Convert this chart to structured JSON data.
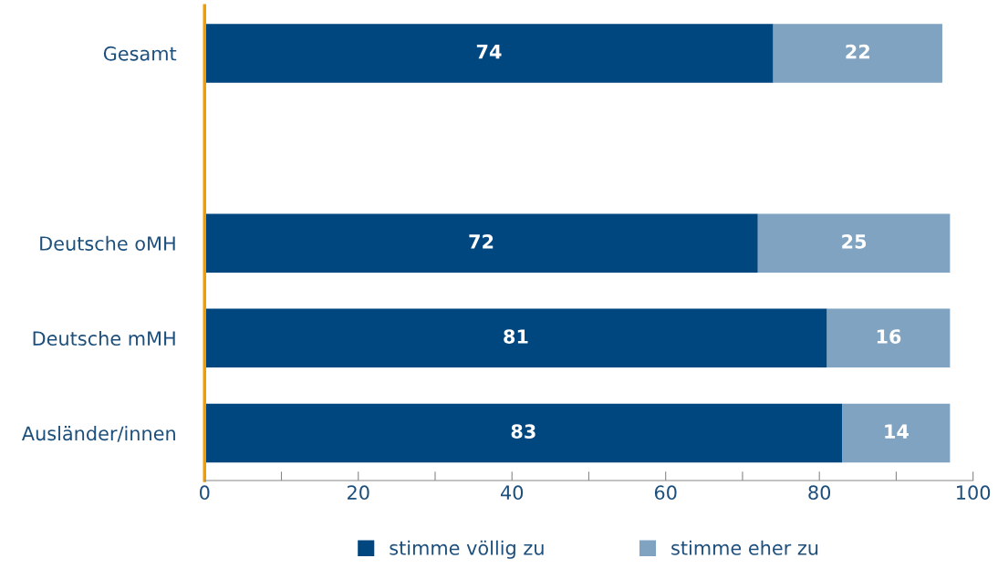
{
  "chart_data": {
    "type": "bar",
    "orientation": "horizontal",
    "stacked": true,
    "data_labels": true,
    "categories": [
      "Gesamt",
      null,
      "Deutsche oMH",
      "Deutsche mMH",
      "Ausländer/innen"
    ],
    "series": [
      {
        "name": "stimme völlig zu",
        "color": "#00467f",
        "values": [
          74,
          null,
          72,
          81,
          83
        ]
      },
      {
        "name": "stimme eher zu",
        "color": "#7fa3c1",
        "values": [
          22,
          null,
          25,
          16,
          14
        ]
      }
    ],
    "xlim": [
      0,
      100
    ],
    "xticks": [
      0,
      {
        "value": 10,
        "label": null
      },
      20,
      {
        "value": 30,
        "label": null
      },
      40,
      {
        "value": 50,
        "label": null
      },
      60,
      {
        "value": 70,
        "label": null
      },
      80,
      {
        "value": 90,
        "label": null
      },
      100
    ],
    "grid": false,
    "legend": "bottom"
  }
}
